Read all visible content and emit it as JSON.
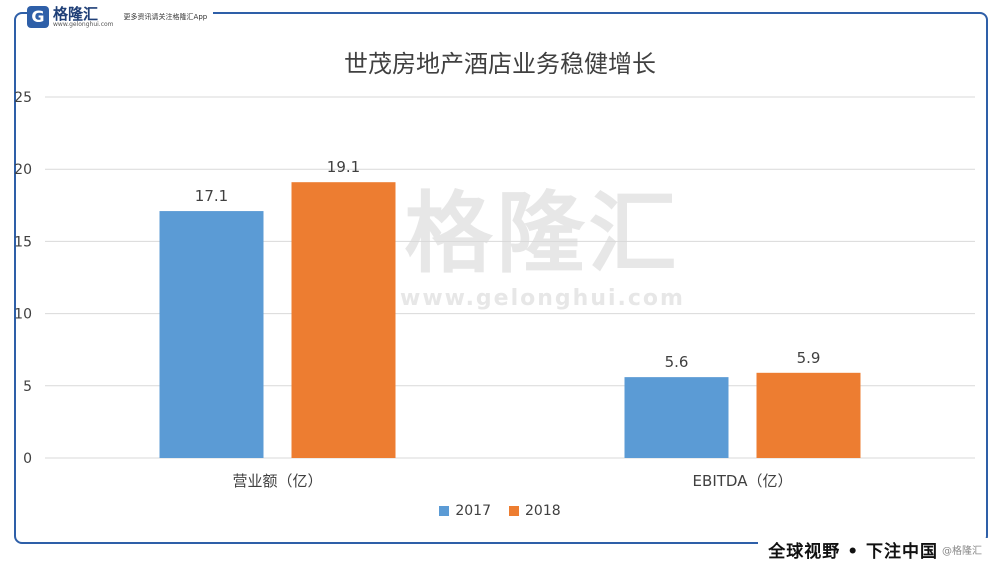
{
  "header": {
    "logo_mark": "G",
    "logo_name": "格隆汇",
    "logo_url": "www.gelonghui.com",
    "tagline": "更多资讯请关注格隆汇App"
  },
  "watermark": {
    "name": "格隆汇",
    "url": "www.gelonghui.com"
  },
  "banner": {
    "text": "全球视野 • 下注中国",
    "handle": "@格隆汇"
  },
  "colors": {
    "series_2017": "#5b9bd5",
    "series_2018": "#ed7d31",
    "frame": "#2e5fa8",
    "gridline": "#d9d9d9",
    "text": "#404040"
  },
  "chart_data": {
    "type": "bar",
    "title": "世茂房地产酒店业务稳健增长",
    "categories": [
      "营业额（亿）",
      "EBITDA（亿）"
    ],
    "series": [
      {
        "name": "2017",
        "values": [
          17.1,
          5.6
        ]
      },
      {
        "name": "2018",
        "values": [
          19.1,
          5.9
        ]
      }
    ],
    "ylim": [
      0,
      25
    ],
    "yticks": [
      0,
      5,
      10,
      15,
      20,
      25
    ],
    "grid": true,
    "legend_position": "bottom",
    "data_labels": true
  }
}
